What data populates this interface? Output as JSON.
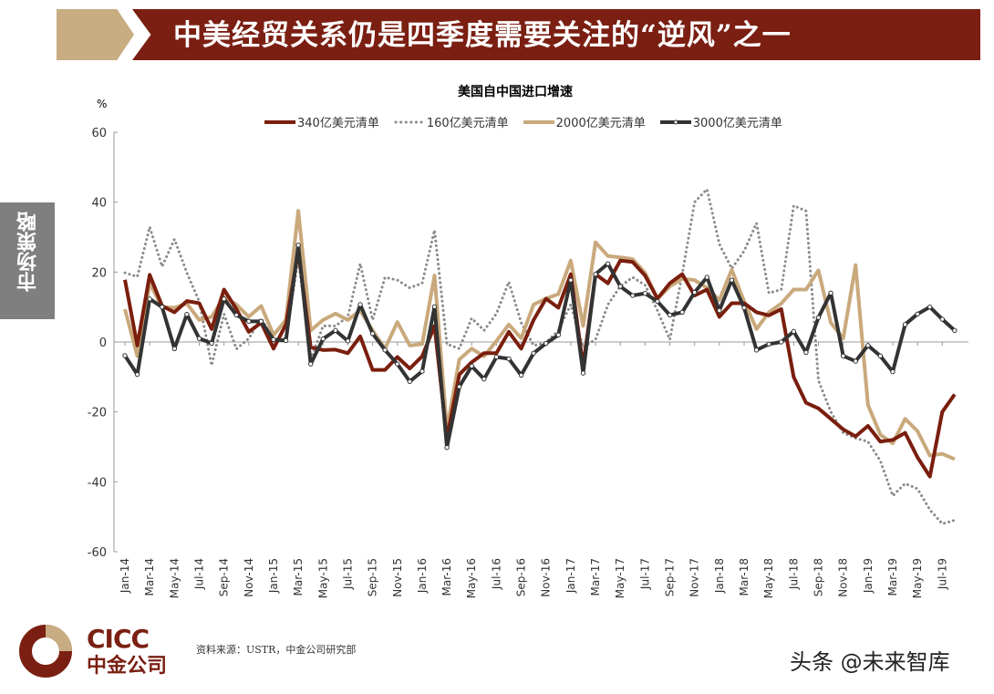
{
  "header": {
    "title": "中美经贸关系仍是四季度需要关注的“逆风”之一"
  },
  "side_tab": {
    "label": "市场策略"
  },
  "footer": {
    "source": "资料来源：USTR，中金公司研究部",
    "watermark": "头条 @未来智库",
    "logo_en": "CICC",
    "logo_cn": "中金公司"
  },
  "chart_data": {
    "type": "line",
    "title": "美国自中国进口增速",
    "ylabel": "%",
    "ylim": [
      -60,
      60
    ],
    "yticks": [
      60,
      40,
      20,
      0,
      -20,
      -40,
      -60
    ],
    "grid": false,
    "legend": "top",
    "xticks": [
      "Jan-14",
      "Mar-14",
      "May-14",
      "Jul-14",
      "Sep-14",
      "Nov-14",
      "Jan-15",
      "Mar-15",
      "May-15",
      "Jul-15",
      "Sep-15",
      "Nov-15",
      "Jan-16",
      "Mar-16",
      "May-16",
      "Jul-16",
      "Sep-16",
      "Nov-16",
      "Jan-17",
      "Mar-17",
      "May-17",
      "Jul-17",
      "Sep-17",
      "Nov-17",
      "Jan-18",
      "Mar-18",
      "May-18",
      "Jul-18",
      "Sep-18",
      "Nov-18",
      "Jan-19",
      "Mar-19",
      "May-19",
      "Jul-19"
    ],
    "x_start": "Jan-14",
    "x_end": "Aug-19",
    "series": [
      {
        "name": "340亿美元清单",
        "color": "#7a1e0e",
        "style": "solid",
        "values": [
          17.8,
          -1,
          19.2,
          10.3,
          8.5,
          11.7,
          11.1,
          3.7,
          15,
          9.4,
          2.9,
          5.5,
          -1.9,
          5,
          26,
          -1.5,
          -2.3,
          -2.2,
          -3.2,
          1.6,
          -8,
          -8,
          -4.3,
          -7.6,
          -4.1,
          4.6,
          -27.6,
          -9.3,
          -5.8,
          -3.2,
          -3.2,
          2.9,
          -1.9,
          6.3,
          12.4,
          9.8,
          19.4,
          -7,
          19.4,
          16.8,
          23.3,
          22.9,
          19,
          12.4,
          16.8,
          19.4,
          13.3,
          15,
          7.2,
          11.1,
          11.1,
          8.5,
          7.6,
          9.4,
          -10,
          -17.4,
          -19,
          -22,
          -25,
          -27,
          -24,
          -28.5,
          -28,
          -26,
          -33,
          -38.5,
          -20,
          -15
        ]
      },
      {
        "name": "160亿美元清单",
        "color": "#8a8a8a",
        "style": "dotted",
        "values": [
          19.8,
          18.7,
          32.9,
          21.6,
          29.4,
          19.8,
          11.6,
          -6.7,
          8,
          -2,
          1,
          6.8,
          0.7,
          1,
          24,
          -5,
          4.6,
          4.6,
          7.2,
          22.4,
          6.3,
          18.5,
          17.7,
          15.5,
          16.8,
          32,
          -0.6,
          -1.9,
          6.8,
          3.3,
          8.1,
          17.2,
          5.5,
          -1,
          -0.2,
          3.3,
          10.7,
          -1.5,
          0.7,
          10.7,
          15.9,
          18.5,
          16.3,
          9,
          0.7,
          19.4,
          40,
          43.7,
          28,
          21,
          26,
          34,
          14,
          15,
          39,
          37.5,
          -11,
          -20,
          -26,
          -27.5,
          -28.5,
          -34,
          -44,
          -40.5,
          -42,
          -48,
          -52,
          -51
        ]
      },
      {
        "name": "2000亿美元清单",
        "color": "#c9a97c",
        "style": "solid",
        "values": [
          9.4,
          -4,
          16.8,
          10,
          9.8,
          11,
          6.3,
          7.2,
          12.9,
          10.7,
          7.2,
          10.3,
          2,
          6.3,
          37.5,
          3.3,
          6.3,
          8.1,
          6.3,
          9,
          3.3,
          -1.9,
          5.7,
          -1,
          -0.6,
          19,
          -25,
          -5,
          -1.9,
          -4.1,
          0.3,
          5,
          1.1,
          10.7,
          12.4,
          13.7,
          23.3,
          4.6,
          28.5,
          24.6,
          24.2,
          23.7,
          19.8,
          12.4,
          15.9,
          18.1,
          17.7,
          15.5,
          12,
          20.7,
          11.6,
          3.7,
          8.5,
          11,
          15,
          15,
          20.5,
          5.5,
          1,
          22,
          -18,
          -26.5,
          -29,
          -22,
          -25.5,
          -32.5,
          -32,
          -33.5
        ]
      },
      {
        "name": "3000亿美元清单",
        "color": "#333333",
        "style": "marker",
        "values": [
          -3.9,
          -9.3,
          12.3,
          10,
          -1.9,
          7.9,
          1,
          -0.4,
          12.3,
          7.7,
          5.9,
          5.9,
          0.7,
          0.4,
          27.7,
          -6.3,
          0.9,
          3.3,
          0.3,
          10.7,
          2.4,
          -2.3,
          -6.3,
          -11.3,
          -8.4,
          10.1,
          -30.2,
          -12.8,
          -6.9,
          -10.6,
          -4.3,
          -4.8,
          -9.5,
          -3.2,
          -0.4,
          2,
          17.7,
          -8.9,
          19.4,
          22.4,
          15.9,
          13.3,
          13.9,
          11.6,
          7.7,
          8.5,
          14.2,
          18.5,
          9,
          17.7,
          9.8,
          -2.3,
          -0.6,
          0,
          3,
          -3,
          7,
          14,
          -4,
          -5.5,
          -1,
          -4,
          -8.5,
          5,
          8,
          10,
          6.5,
          3.3
        ]
      }
    ]
  }
}
